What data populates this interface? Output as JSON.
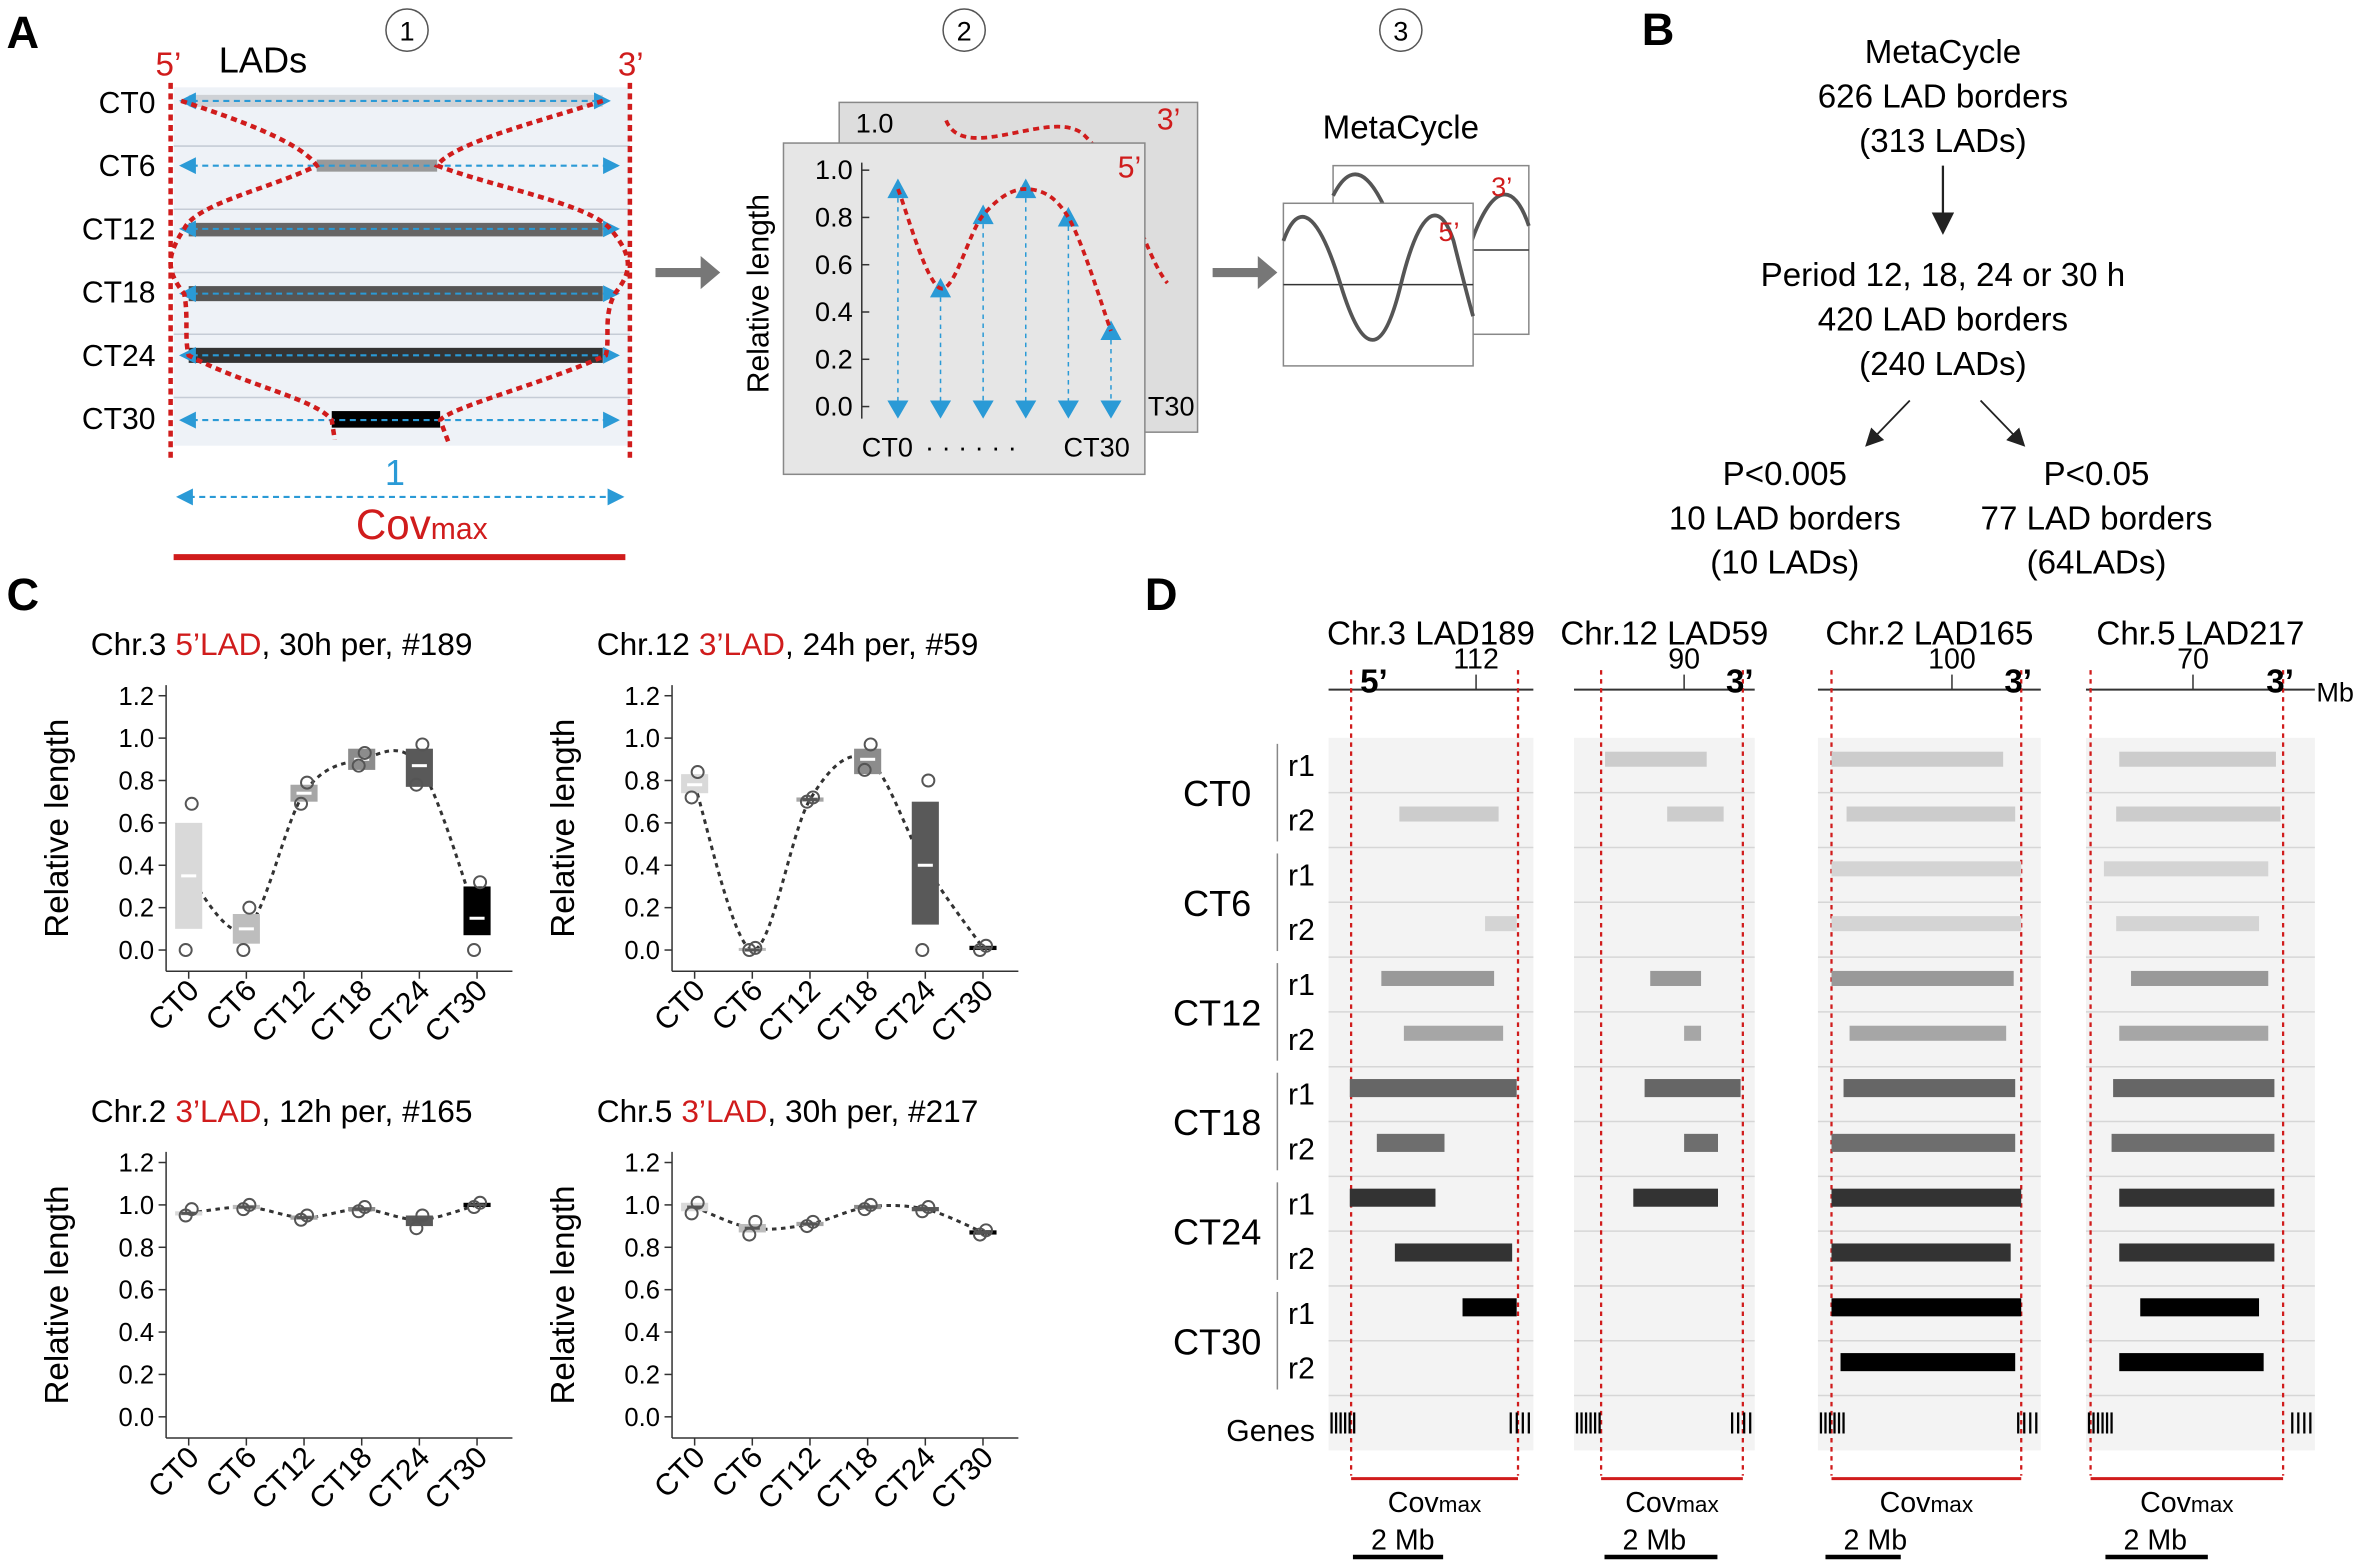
{
  "panel_a": {
    "label": "A",
    "step1": {
      "number": "1",
      "title": "LADs",
      "five": "5’",
      "three": "3’",
      "rows": [
        "CT0",
        "CT6",
        "CT12",
        "CT18",
        "CT24",
        "CT30"
      ],
      "width_label": "1",
      "cov": "Cov",
      "cov_sub": "max"
    },
    "step2": {
      "number": "2",
      "ylabel": "Relative length",
      "yticks": [
        {
          "value": 0,
          "label": "0.0"
        },
        {
          "value": 0.2,
          "label": "0.2"
        },
        {
          "value": 0.4,
          "label": "0.4"
        },
        {
          "value": 0.6,
          "label": "0.6"
        },
        {
          "value": 0.8,
          "label": "0.8"
        },
        {
          "value": 1,
          "label": "1.0"
        }
      ],
      "ylim": [
        0,
        1
      ],
      "values": [
        0.92,
        0.5,
        0.81,
        0.92,
        0.8,
        0.32
      ],
      "back_tick": "1.0",
      "x_start": "CT0",
      "x_dots": "· · · · · ·",
      "x_end": "CT30",
      "back_x_end": "T30",
      "five": "5’",
      "three": "3’"
    },
    "step3": {
      "number": "3",
      "title": "MetaCycle",
      "five": "5’",
      "three": "3’"
    }
  },
  "panel_b": {
    "label": "B",
    "top": [
      "MetaCycle",
      "626 LAD borders",
      "(313 LADs)"
    ],
    "middle": [
      "Period 12, 18, 24 or 30 h",
      "420 LAD borders",
      "(240 LADs)"
    ],
    "left": [
      "P<0.005",
      "10 LAD borders",
      "(10 LADs)"
    ],
    "right": [
      "P<0.05",
      "77 LAD borders",
      "(64LADs)"
    ]
  },
  "panel_c": {
    "label": "C",
    "charts": [
      {
        "type": "box",
        "title_parts": [
          "Chr.3",
          "5’LAD",
          ", 30h per, #189"
        ],
        "ylabel": "Relative length",
        "categories": [
          "CT0",
          "CT6",
          "CT12",
          "CT18",
          "CT24",
          "CT30"
        ],
        "values": [
          0.35,
          0.1,
          0.74,
          0.9,
          0.87,
          0.15
        ],
        "box_low": [
          0.1,
          0.03,
          0.7,
          0.85,
          0.77,
          0.07
        ],
        "box_high": [
          0.6,
          0.17,
          0.78,
          0.95,
          0.95,
          0.3
        ],
        "points": [
          [
            0.69,
            0.0
          ],
          [
            0.2,
            0.0
          ],
          [
            0.79,
            0.69
          ],
          [
            0.93,
            0.87
          ],
          [
            0.97,
            0.78
          ],
          [
            0.32,
            0.0
          ]
        ],
        "colors": [
          "#d9d9d9",
          "#bdbdbd",
          "#a6a6a6",
          "#8c8c8c",
          "#595959",
          "#000000"
        ],
        "ylim": [
          -0.1,
          1.25
        ],
        "yticks": [
          {
            "value": 0,
            "label": "0.0"
          },
          {
            "value": 0.2,
            "label": "0.2"
          },
          {
            "value": 0.4,
            "label": "0.4"
          },
          {
            "value": 0.6,
            "label": "0.6"
          },
          {
            "value": 0.8,
            "label": "0.8"
          },
          {
            "value": 1,
            "label": "1.0"
          },
          {
            "value": 1.2,
            "label": "1.2"
          }
        ]
      },
      {
        "type": "box",
        "title_parts": [
          "Chr.12",
          "3’LAD",
          ", 24h per, #59"
        ],
        "ylabel": "Relative length",
        "categories": [
          "CT0",
          "CT6",
          "CT12",
          "CT18",
          "CT24",
          "CT30"
        ],
        "values": [
          0.78,
          0.0,
          0.71,
          0.9,
          0.4,
          0.01
        ],
        "box_low": [
          0.74,
          0.0,
          0.7,
          0.83,
          0.12,
          0.0
        ],
        "box_high": [
          0.83,
          0.01,
          0.72,
          0.95,
          0.7,
          0.02
        ],
        "points": [
          [
            0.84,
            0.72
          ],
          [
            0.01,
            0.0
          ],
          [
            0.72,
            0.7
          ],
          [
            0.97,
            0.85
          ],
          [
            0.8,
            0.0
          ],
          [
            0.02,
            0.0
          ]
        ],
        "colors": [
          "#d9d9d9",
          "#bdbdbd",
          "#a6a6a6",
          "#8c8c8c",
          "#595959",
          "#000000"
        ],
        "ylim": [
          -0.1,
          1.25
        ],
        "yticks": [
          {
            "value": 0,
            "label": "0.0"
          },
          {
            "value": 0.2,
            "label": "0.2"
          },
          {
            "value": 0.4,
            "label": "0.4"
          },
          {
            "value": 0.6,
            "label": "0.6"
          },
          {
            "value": 0.8,
            "label": "0.8"
          },
          {
            "value": 1,
            "label": "1.0"
          },
          {
            "value": 1.2,
            "label": "1.2"
          }
        ]
      },
      {
        "type": "box",
        "title_parts": [
          "Chr.2",
          "3’LAD",
          ", 12h per, #165"
        ],
        "ylabel": "Relative length",
        "categories": [
          "CT0",
          "CT6",
          "CT12",
          "CT18",
          "CT24",
          "CT30"
        ],
        "values": [
          0.96,
          0.99,
          0.94,
          0.98,
          0.93,
          1.0
        ],
        "box_low": [
          0.95,
          0.98,
          0.93,
          0.97,
          0.9,
          0.99
        ],
        "box_high": [
          0.97,
          1.0,
          0.95,
          0.99,
          0.95,
          1.01
        ],
        "points": [
          [
            0.98,
            0.95
          ],
          [
            1.0,
            0.98
          ],
          [
            0.95,
            0.93
          ],
          [
            0.99,
            0.97
          ],
          [
            0.95,
            0.89
          ],
          [
            1.01,
            0.99
          ]
        ],
        "colors": [
          "#d9d9d9",
          "#bdbdbd",
          "#a6a6a6",
          "#8c8c8c",
          "#595959",
          "#000000"
        ],
        "ylim": [
          -0.1,
          1.25
        ],
        "yticks": [
          {
            "value": 0,
            "label": "0.0"
          },
          {
            "value": 0.2,
            "label": "0.2"
          },
          {
            "value": 0.4,
            "label": "0.4"
          },
          {
            "value": 0.6,
            "label": "0.6"
          },
          {
            "value": 0.8,
            "label": "0.8"
          },
          {
            "value": 1,
            "label": "1.0"
          },
          {
            "value": 1.2,
            "label": "1.2"
          }
        ]
      },
      {
        "type": "box",
        "title_parts": [
          "Chr.5",
          "3’LAD",
          ", 30h per, #217"
        ],
        "ylabel": "Relative length",
        "categories": [
          "CT0",
          "CT6",
          "CT12",
          "CT18",
          "CT24",
          "CT30"
        ],
        "values": [
          0.99,
          0.89,
          0.91,
          0.99,
          0.98,
          0.87
        ],
        "box_low": [
          0.97,
          0.87,
          0.9,
          0.98,
          0.97,
          0.86
        ],
        "box_high": [
          1.01,
          0.91,
          0.92,
          1.0,
          0.99,
          0.88
        ],
        "points": [
          [
            1.01,
            0.96
          ],
          [
            0.92,
            0.86
          ],
          [
            0.92,
            0.9
          ],
          [
            1.0,
            0.98
          ],
          [
            0.99,
            0.97
          ],
          [
            0.88,
            0.86
          ]
        ],
        "colors": [
          "#d9d9d9",
          "#bdbdbd",
          "#a6a6a6",
          "#8c8c8c",
          "#595959",
          "#000000"
        ],
        "ylim": [
          -0.1,
          1.25
        ],
        "yticks": [
          {
            "value": 0,
            "label": "0.0"
          },
          {
            "value": 0.2,
            "label": "0.2"
          },
          {
            "value": 0.4,
            "label": "0.4"
          },
          {
            "value": 0.6,
            "label": "0.6"
          },
          {
            "value": 0.8,
            "label": "0.8"
          },
          {
            "value": 1,
            "label": "1.0"
          },
          {
            "value": 1.2,
            "label": "1.2"
          }
        ]
      }
    ]
  },
  "panel_d": {
    "label": "D",
    "unit": "Mb",
    "conditions": [
      "CT0",
      "CT6",
      "CT12",
      "CT18",
      "CT24",
      "CT30"
    ],
    "replicates": [
      "r1",
      "r2"
    ],
    "genes_label": "Genes",
    "cov": "Cov",
    "cov_sub": "max",
    "track_colors": [
      "#cccccc",
      "#cccccc",
      "#d4d4d4",
      "#d4d4d4",
      "#999999",
      "#a6a6a6",
      "#666666",
      "#6e6e6e",
      "#333333",
      "#333333",
      "#000000",
      "#000000"
    ],
    "columns": [
      {
        "title": "Chr.3 LAD189",
        "border": "5’",
        "xlim": [
          108.73,
          113.27
        ],
        "xticks": [
          112
        ],
        "cov_range": [
          109.23,
          112.93
        ],
        "scale_bar": {
          "value": 2,
          "label": "2 Mb"
        },
        "scale_bar_start": 109.27,
        "bars": [
          null,
          [
            110.3,
            112.5
          ],
          null,
          [
            112.2,
            112.9
          ],
          [
            109.9,
            112.4
          ],
          [
            110.4,
            112.6
          ],
          [
            109.2,
            112.9
          ],
          [
            109.8,
            111.3
          ],
          [
            109.2,
            111.1
          ],
          [
            110.2,
            112.8
          ],
          [
            111.7,
            112.9
          ],
          null
        ]
      },
      {
        "title": "Chr.12 LAD59",
        "border": "3’",
        "xlim": [
          88.05,
          91.25
        ],
        "xticks": [
          90
        ],
        "cov_range": [
          88.53,
          91.04
        ],
        "scale_bar": {
          "value": 2,
          "label": "2 Mb"
        },
        "scale_bar_start": 88.59,
        "bars": [
          [
            88.6,
            90.4
          ],
          [
            89.7,
            90.7
          ],
          null,
          null,
          [
            89.4,
            90.3
          ],
          [
            90.0,
            90.3
          ],
          [
            89.3,
            91.0
          ],
          [
            90.0,
            90.6
          ],
          [
            89.1,
            90.6
          ],
          null,
          null,
          null
        ]
      },
      {
        "title": "Chr.2 LAD165",
        "border": "3’",
        "xlim": [
          96.44,
          102.36
        ],
        "xticks": [
          100
        ],
        "cov_range": [
          96.8,
          101.84
        ],
        "scale_bar": {
          "value": 2,
          "label": "2 Mb"
        },
        "scale_bar_start": 96.64,
        "bars": [
          [
            96.8,
            101.36
          ],
          [
            97.2,
            101.68
          ],
          [
            96.8,
            101.84
          ],
          [
            96.8,
            101.84
          ],
          [
            96.8,
            101.64
          ],
          [
            97.28,
            101.44
          ],
          [
            97.12,
            101.68
          ],
          [
            96.8,
            101.68
          ],
          [
            96.8,
            101.84
          ],
          [
            96.8,
            101.56
          ],
          [
            96.8,
            101.84
          ],
          [
            97.04,
            101.68
          ]
        ]
      },
      {
        "title": "Chr.5 LAD217",
        "border": "3’",
        "xlim": [
          67.91,
          72.38
        ],
        "xticks": [
          70
        ],
        "cov_range": [
          68.0,
          71.76
        ],
        "scale_bar": {
          "value": 2,
          "label": "2 Mb"
        },
        "scale_bar_start": 68.29,
        "bars": [
          [
            68.56,
            71.62
          ],
          [
            68.5,
            71.71
          ],
          [
            68.26,
            71.47
          ],
          [
            68.5,
            71.29
          ],
          [
            68.79,
            71.47
          ],
          [
            68.56,
            71.47
          ],
          [
            68.44,
            71.59
          ],
          [
            68.41,
            71.59
          ],
          [
            68.56,
            71.59
          ],
          [
            68.56,
            71.59
          ],
          [
            68.97,
            71.29
          ],
          [
            68.56,
            71.38
          ]
        ]
      }
    ]
  }
}
